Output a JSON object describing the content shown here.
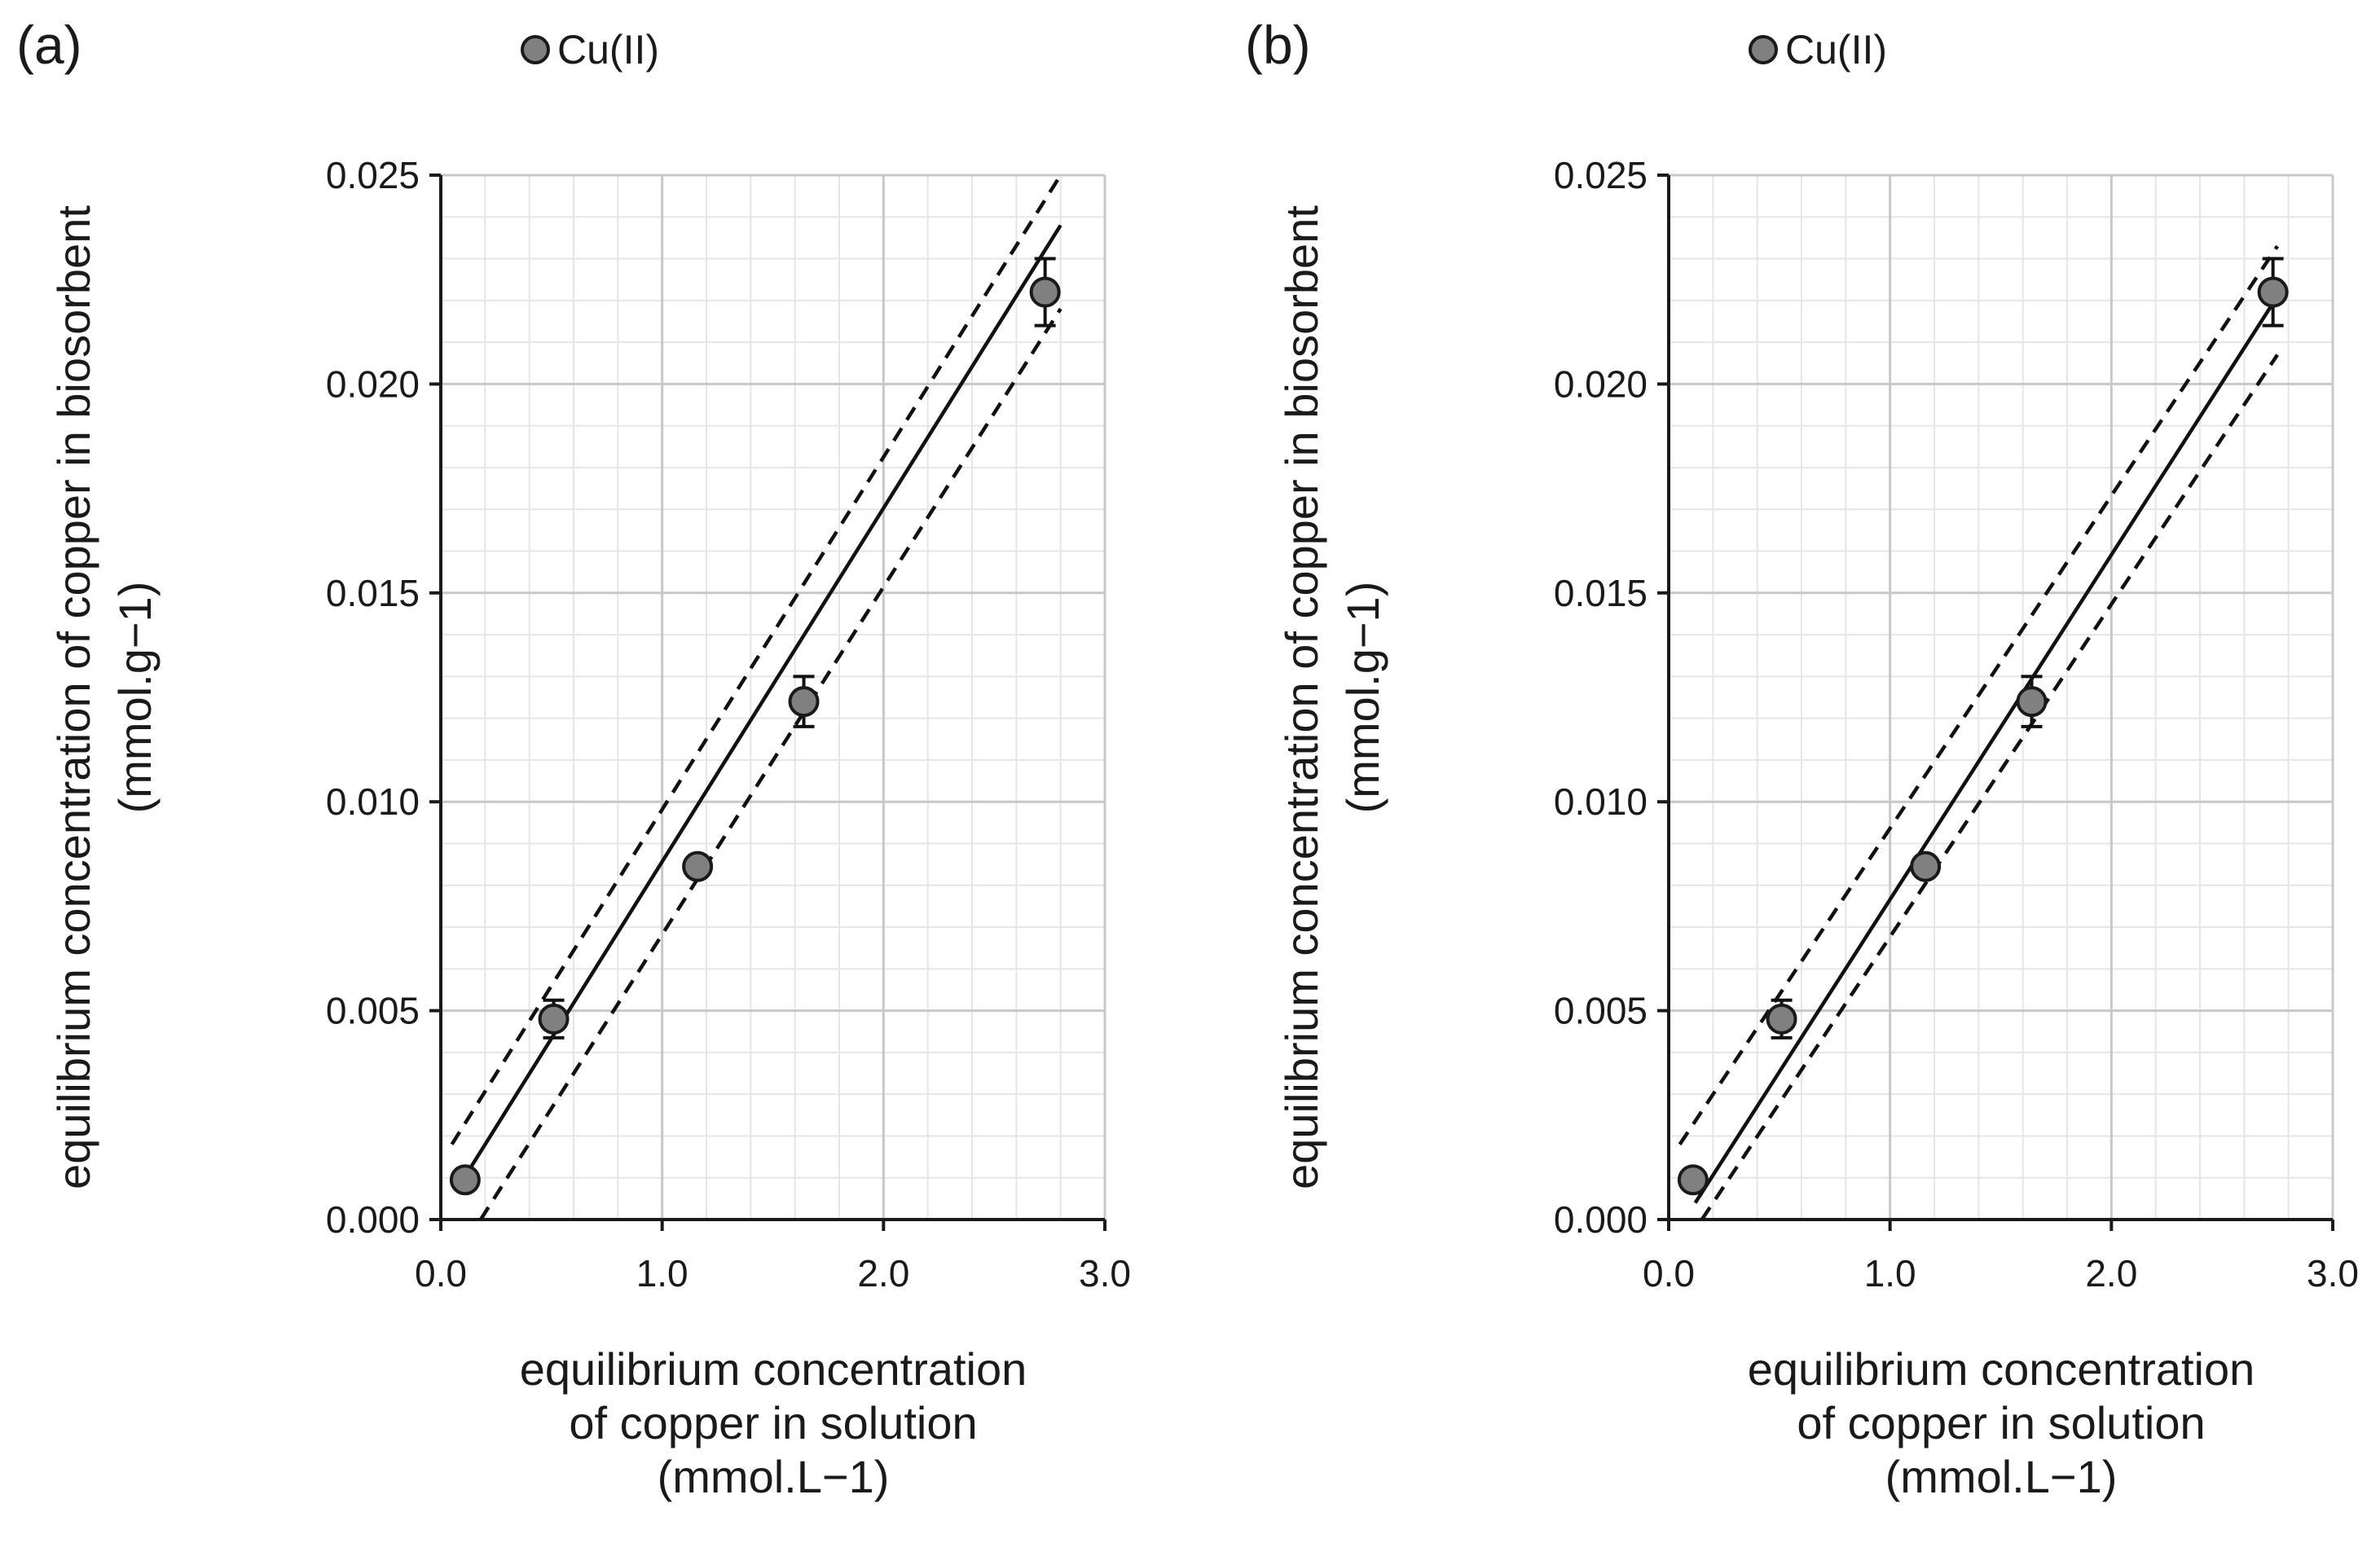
{
  "chart_data": [
    {
      "type": "scatter",
      "panel_label": "(a)",
      "legend": "Cu(II)",
      "xlabel_lines": [
        "equilibrium concentration",
        "of copper in solution",
        "(mmol.L−1)"
      ],
      "ylabel_lines": [
        "equilibrium concentration of copper in biosorbent",
        "(mmol.g−1)"
      ],
      "xlim": [
        0,
        3
      ],
      "ylim": [
        0,
        0.025
      ],
      "xticks": [
        0,
        1,
        2,
        3
      ],
      "xtick_labels": [
        "0.0",
        "1.0",
        "2.0",
        "3.0"
      ],
      "yticks": [
        0,
        0.005,
        0.01,
        0.015,
        0.02,
        0.025
      ],
      "ytick_labels": [
        "0.000",
        "0.005",
        "0.010",
        "0.015",
        "0.020",
        "0.025"
      ],
      "grid": true,
      "series": [
        {
          "name": "Cu(II)",
          "x": [
            0.11,
            0.51,
            1.16,
            1.64,
            2.73
          ],
          "y": [
            0.00095,
            0.0048,
            0.00845,
            0.0124,
            0.0222
          ],
          "yerr": [
            0.0001,
            0.00045,
            0.0002,
            0.0006,
            0.0008
          ]
        }
      ],
      "fit_line": {
        "x": [
          0.1,
          2.8
        ],
        "y": [
          0.00095,
          0.0238
        ]
      },
      "band_upper": {
        "x": [
          0.05,
          2.8
        ],
        "y": [
          0.0018,
          0.025
        ]
      },
      "band_lower": {
        "x": [
          0.18,
          2.8
        ],
        "y": [
          0.0,
          0.0218
        ]
      }
    },
    {
      "type": "scatter",
      "panel_label": "(b)",
      "legend": "Cu(II)",
      "xlabel_lines": [
        "equilibrium concentration",
        "of copper in solution",
        "(mmol.L−1)"
      ],
      "ylabel_lines": [
        "equilibrium concentration of copper in biosorbent",
        "(mmol.g−1)"
      ],
      "xlim": [
        0,
        3
      ],
      "ylim": [
        0,
        0.025
      ],
      "xticks": [
        0,
        1,
        2,
        3
      ],
      "xtick_labels": [
        "0.0",
        "1.0",
        "2.0",
        "3.0"
      ],
      "yticks": [
        0,
        0.005,
        0.01,
        0.015,
        0.02,
        0.025
      ],
      "ytick_labels": [
        "0.000",
        "0.005",
        "0.010",
        "0.015",
        "0.020",
        "0.025"
      ],
      "grid": true,
      "series": [
        {
          "name": "Cu(II)",
          "x": [
            0.11,
            0.51,
            1.16,
            1.64,
            2.73
          ],
          "y": [
            0.00095,
            0.0048,
            0.00845,
            0.0124,
            0.0222
          ],
          "yerr": [
            0.0001,
            0.00045,
            0.0002,
            0.0006,
            0.0008
          ]
        }
      ],
      "fit_line": {
        "x": [
          0.12,
          2.75
        ],
        "y": [
          0.0004,
          0.0221
        ]
      },
      "band_upper": {
        "x": [
          0.05,
          2.75
        ],
        "y": [
          0.0018,
          0.0233
        ]
      },
      "band_lower": {
        "x": [
          0.15,
          2.75
        ],
        "y": [
          0.0,
          0.0207
        ]
      }
    }
  ]
}
